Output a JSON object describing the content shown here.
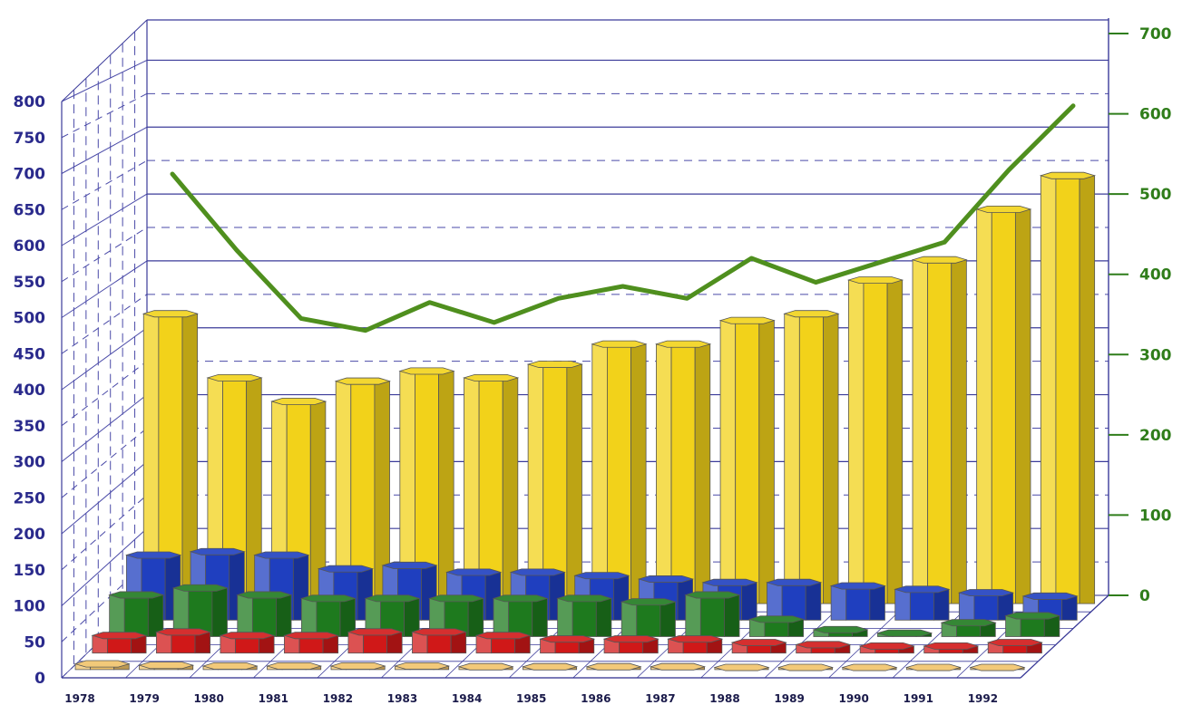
{
  "chart_data": {
    "type": "bar",
    "categories": [
      "1978",
      "1979",
      "1980",
      "1981",
      "1982",
      "1983",
      "1984",
      "1985",
      "1986",
      "1987",
      "1988",
      "1989",
      "1990",
      "1991",
      "1992"
    ],
    "y_left_ticks": [
      "0",
      "50",
      "100",
      "150",
      "200",
      "250",
      "300",
      "350",
      "400",
      "450",
      "500",
      "550",
      "600",
      "650",
      "700",
      "750",
      "800"
    ],
    "y_right_ticks": [
      "0",
      "100",
      "200",
      "300",
      "400",
      "500",
      "600",
      "700"
    ],
    "ylim_left": [
      0,
      800
    ],
    "ylim_right": [
      0,
      700
    ],
    "grid": true,
    "series": [
      {
        "axis": "left",
        "color": "#f2d21a",
        "values": [
          430,
          335,
          300,
          330,
          345,
          335,
          355,
          385,
          385,
          420,
          430,
          480,
          510,
          585,
          635
        ]
      },
      {
        "axis": "left",
        "color": "#1f3fbf",
        "values": [
          95,
          100,
          95,
          75,
          80,
          70,
          70,
          65,
          60,
          55,
          55,
          50,
          45,
          40,
          35
        ]
      },
      {
        "axis": "left",
        "color": "#1e7a1e",
        "values": [
          60,
          70,
          60,
          55,
          55,
          55,
          55,
          55,
          50,
          60,
          25,
          10,
          5,
          20,
          30
        ]
      },
      {
        "axis": "left",
        "color": "#d01818",
        "values": [
          25,
          30,
          25,
          25,
          30,
          30,
          25,
          20,
          20,
          20,
          15,
          12,
          10,
          10,
          15
        ]
      },
      {
        "axis": "left",
        "color": "#f0c36a",
        "values": [
          8,
          6,
          5,
          5,
          5,
          5,
          4,
          4,
          4,
          4,
          3,
          3,
          3,
          3,
          3
        ]
      },
      {
        "axis": "right",
        "type": "line",
        "color": "#4f8f1e",
        "values": [
          525,
          430,
          345,
          330,
          365,
          340,
          370,
          385,
          370,
          420,
          390,
          415,
          440,
          530,
          610
        ]
      }
    ]
  }
}
